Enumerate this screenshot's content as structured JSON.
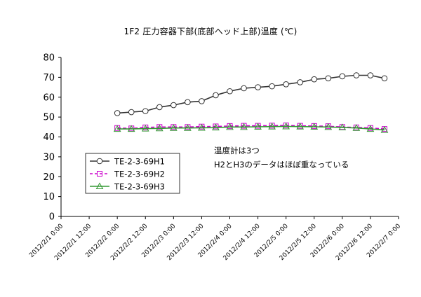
{
  "chart_data": {
    "type": "line",
    "title": "1F2 圧力容器下部(底部ヘッド上部)温度 (℃)",
    "xlabel": "",
    "ylabel": "",
    "ylim": [
      0,
      80
    ],
    "yticks": [
      "0",
      "10",
      "20",
      "30",
      "40",
      "50",
      "60",
      "70",
      "80"
    ],
    "xlim": [
      "2012/2/1 0:00",
      "2012/2/7 0:00"
    ],
    "xticks": [
      "2012/2/1 0:00",
      "2012/2/1 12:00",
      "2012/2/2 0:00",
      "2012/2/2 12:00",
      "2012/2/3 0:00",
      "2012/2/3 12:00",
      "2012/2/4 0:00",
      "2012/2/4 12:00",
      "2012/2/5 0:00",
      "2012/2/5 12:00",
      "2012/2/6 0:00",
      "2012/2/6 12:00",
      "2012/2/7 0:00"
    ],
    "grid": false,
    "legend_position": "left-middle",
    "series": [
      {
        "name": "TE-2-3-69H1",
        "color": "#333333",
        "dash": "solid",
        "marker": "circle",
        "x": [
          "2012/2/2 0:00",
          "2012/2/2 6:00",
          "2012/2/2 12:00",
          "2012/2/2 18:00",
          "2012/2/3 0:00",
          "2012/2/3 6:00",
          "2012/2/3 12:00",
          "2012/2/3 18:00",
          "2012/2/4 0:00",
          "2012/2/4 6:00",
          "2012/2/4 12:00",
          "2012/2/4 18:00",
          "2012/2/5 0:00",
          "2012/2/5 6:00",
          "2012/2/5 12:00",
          "2012/2/5 18:00",
          "2012/2/6 0:00",
          "2012/2/6 6:00",
          "2012/2/6 12:00",
          "2012/2/6 18:00"
        ],
        "y": [
          52,
          52.5,
          53,
          55,
          56,
          57.5,
          58,
          61,
          63,
          64.5,
          65,
          65.5,
          66.5,
          67.5,
          69,
          69.5,
          70.5,
          71,
          71,
          69.5
        ]
      },
      {
        "name": "TE-2-3-69H2",
        "color": "#cc00cc",
        "dash": "dashed",
        "marker": "square",
        "x": [
          "2012/2/2 0:00",
          "2012/2/2 6:00",
          "2012/2/2 12:00",
          "2012/2/2 18:00",
          "2012/2/3 0:00",
          "2012/2/3 6:00",
          "2012/2/3 12:00",
          "2012/2/3 18:00",
          "2012/2/4 0:00",
          "2012/2/4 6:00",
          "2012/2/4 12:00",
          "2012/2/4 18:00",
          "2012/2/5 0:00",
          "2012/2/5 6:00",
          "2012/2/5 12:00",
          "2012/2/5 18:00",
          "2012/2/6 0:00",
          "2012/2/6 6:00",
          "2012/2/6 12:00",
          "2012/2/6 18:00"
        ],
        "y": [
          44.5,
          44.3,
          44.8,
          45,
          45,
          45,
          45.2,
          45.3,
          45.5,
          45.6,
          45.6,
          45.7,
          45.8,
          45.6,
          45.5,
          45.4,
          45,
          44.8,
          44.5,
          44
        ]
      },
      {
        "name": "TE-2-3-69H3",
        "color": "#339933",
        "dash": "solid",
        "marker": "triangle",
        "x": [
          "2012/2/2 0:00",
          "2012/2/2 6:00",
          "2012/2/2 12:00",
          "2012/2/2 18:00",
          "2012/2/3 0:00",
          "2012/2/3 6:00",
          "2012/2/3 12:00",
          "2012/2/3 18:00",
          "2012/2/4 0:00",
          "2012/2/4 6:00",
          "2012/2/4 12:00",
          "2012/2/4 18:00",
          "2012/2/5 0:00",
          "2012/2/5 6:00",
          "2012/2/5 12:00",
          "2012/2/5 18:00",
          "2012/2/6 0:00",
          "2012/2/6 6:00",
          "2012/2/6 12:00",
          "2012/2/6 18:00"
        ],
        "y": [
          44,
          44,
          44.2,
          44.3,
          44.5,
          44.5,
          44.6,
          44.7,
          45,
          45,
          45.1,
          45.2,
          45.3,
          45.2,
          45.1,
          45,
          44.8,
          44.5,
          44,
          43.5
        ]
      }
    ],
    "annotations": [
      "温度計は3つ",
      "H2とH3のデータはほぼ重なっている"
    ]
  }
}
